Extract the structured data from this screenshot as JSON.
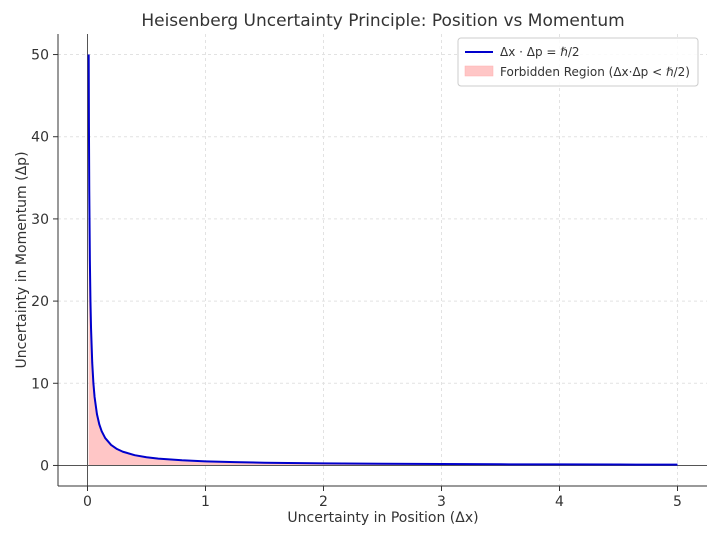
{
  "chart_data": {
    "type": "area",
    "title": "Heisenberg Uncertainty Principle: Position vs Momentum",
    "xlabel": "Uncertainty in Position (Δx)",
    "ylabel": "Uncertainty in Momentum (Δp)",
    "xlim": [
      -0.25,
      5.25
    ],
    "ylim": [
      -2.5,
      52.5
    ],
    "xticks": [
      0,
      1,
      2,
      3,
      4,
      5
    ],
    "yticks": [
      0,
      10,
      20,
      30,
      40,
      50
    ],
    "x_tick_labels": [
      "0",
      "1",
      "2",
      "3",
      "4",
      "5"
    ],
    "y_tick_labels": [
      "0",
      "10",
      "20",
      "30",
      "40",
      "50"
    ],
    "grid": true,
    "legend_position": "top-right",
    "series": [
      {
        "name": "Δx · Δp = ℏ/2",
        "kind": "line",
        "color": "#0000cc",
        "x": [
          0.01,
          0.012,
          0.015,
          0.02,
          0.025,
          0.03,
          0.04,
          0.05,
          0.06,
          0.08,
          0.1,
          0.12,
          0.15,
          0.2,
          0.25,
          0.3,
          0.4,
          0.5,
          0.6,
          0.8,
          1.0,
          1.25,
          1.5,
          2.0,
          2.5,
          3.0,
          3.5,
          4.0,
          4.5,
          5.0
        ],
        "y": [
          50,
          41.67,
          33.33,
          25,
          20,
          16.67,
          12.5,
          10,
          8.33,
          6.25,
          5,
          4.17,
          3.33,
          2.5,
          2,
          1.67,
          1.25,
          1,
          0.83,
          0.63,
          0.5,
          0.4,
          0.33,
          0.25,
          0.2,
          0.17,
          0.14,
          0.13,
          0.11,
          0.1
        ]
      },
      {
        "name": "Forbidden Region (Δx·Δp < ℏ/2)",
        "kind": "area",
        "color": "#ffc0c0",
        "fill_between": "0 to curve"
      }
    ]
  },
  "colors": {
    "curve": "#0000cc",
    "forbidden_fill": "#ffc6c6",
    "axis_zero_line": "#555555",
    "grid": "#dddddd"
  }
}
